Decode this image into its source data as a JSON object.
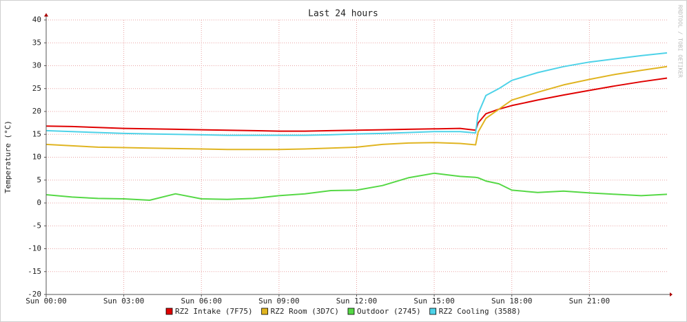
{
  "chart_data": {
    "type": "line",
    "title": "Last 24 hours",
    "y_label": "Temperature (°C)",
    "watermark": "RRDTOOL / TOBI OETIKER",
    "x": [
      0,
      1,
      2,
      3,
      4,
      5,
      6,
      7,
      8,
      9,
      10,
      11,
      12,
      13,
      14,
      15,
      16,
      16.6,
      16.7,
      17,
      17.5,
      18,
      19,
      20,
      21,
      22,
      23,
      24
    ],
    "xlim": [
      0,
      24
    ],
    "xticks": [
      {
        "value": 0,
        "label": "Sun 00:00"
      },
      {
        "value": 3,
        "label": "Sun 03:00"
      },
      {
        "value": 6,
        "label": "Sun 06:00"
      },
      {
        "value": 9,
        "label": "Sun 09:00"
      },
      {
        "value": 12,
        "label": "Sun 12:00"
      },
      {
        "value": 15,
        "label": "Sun 15:00"
      },
      {
        "value": 18,
        "label": "Sun 18:00"
      },
      {
        "value": 21,
        "label": "Sun 21:00"
      }
    ],
    "ylim": [
      -20,
      40
    ],
    "yticks": [
      -20,
      -15,
      -10,
      -5,
      0,
      5,
      10,
      15,
      20,
      25,
      30,
      35,
      40
    ],
    "grid": true,
    "legend": "bottom",
    "series": [
      {
        "name": "RZ2 Intake (7F75)",
        "color": "#e00000",
        "values": [
          16.8,
          16.7,
          16.5,
          16.3,
          16.2,
          16.1,
          16.0,
          15.9,
          15.8,
          15.7,
          15.7,
          15.8,
          15.9,
          16.0,
          16.1,
          16.2,
          16.3,
          15.9,
          17.5,
          19.5,
          20.5,
          21.3,
          22.5,
          23.6,
          24.6,
          25.6,
          26.5,
          27.3
        ]
      },
      {
        "name": "RZ2 Room (3D7C)",
        "color": "#e0b420",
        "values": [
          12.8,
          12.5,
          12.2,
          12.1,
          12.0,
          11.9,
          11.8,
          11.7,
          11.7,
          11.7,
          11.8,
          12.0,
          12.2,
          12.8,
          13.1,
          13.2,
          13.0,
          12.7,
          15.5,
          18.5,
          20.5,
          22.5,
          24.2,
          25.8,
          27.0,
          28.1,
          29.0,
          29.8
        ]
      },
      {
        "name": "Outdoor (2745)",
        "color": "#55d845",
        "values": [
          1.8,
          1.3,
          1.0,
          0.9,
          0.6,
          2.0,
          0.9,
          0.8,
          1.0,
          1.6,
          2.0,
          2.7,
          2.8,
          3.8,
          5.5,
          6.5,
          5.8,
          5.6,
          5.5,
          4.8,
          4.2,
          2.8,
          2.3,
          2.6,
          2.2,
          1.9,
          1.6,
          1.9
        ]
      },
      {
        "name": "RZ2 Cooling (3588)",
        "color": "#4dd2e8",
        "values": [
          15.8,
          15.6,
          15.4,
          15.2,
          15.1,
          15.0,
          14.9,
          14.8,
          14.8,
          14.8,
          14.8,
          14.9,
          15.1,
          15.2,
          15.4,
          15.6,
          15.6,
          15.3,
          19.5,
          23.5,
          25.0,
          26.8,
          28.5,
          29.8,
          30.8,
          31.5,
          32.2,
          32.8
        ]
      }
    ]
  }
}
